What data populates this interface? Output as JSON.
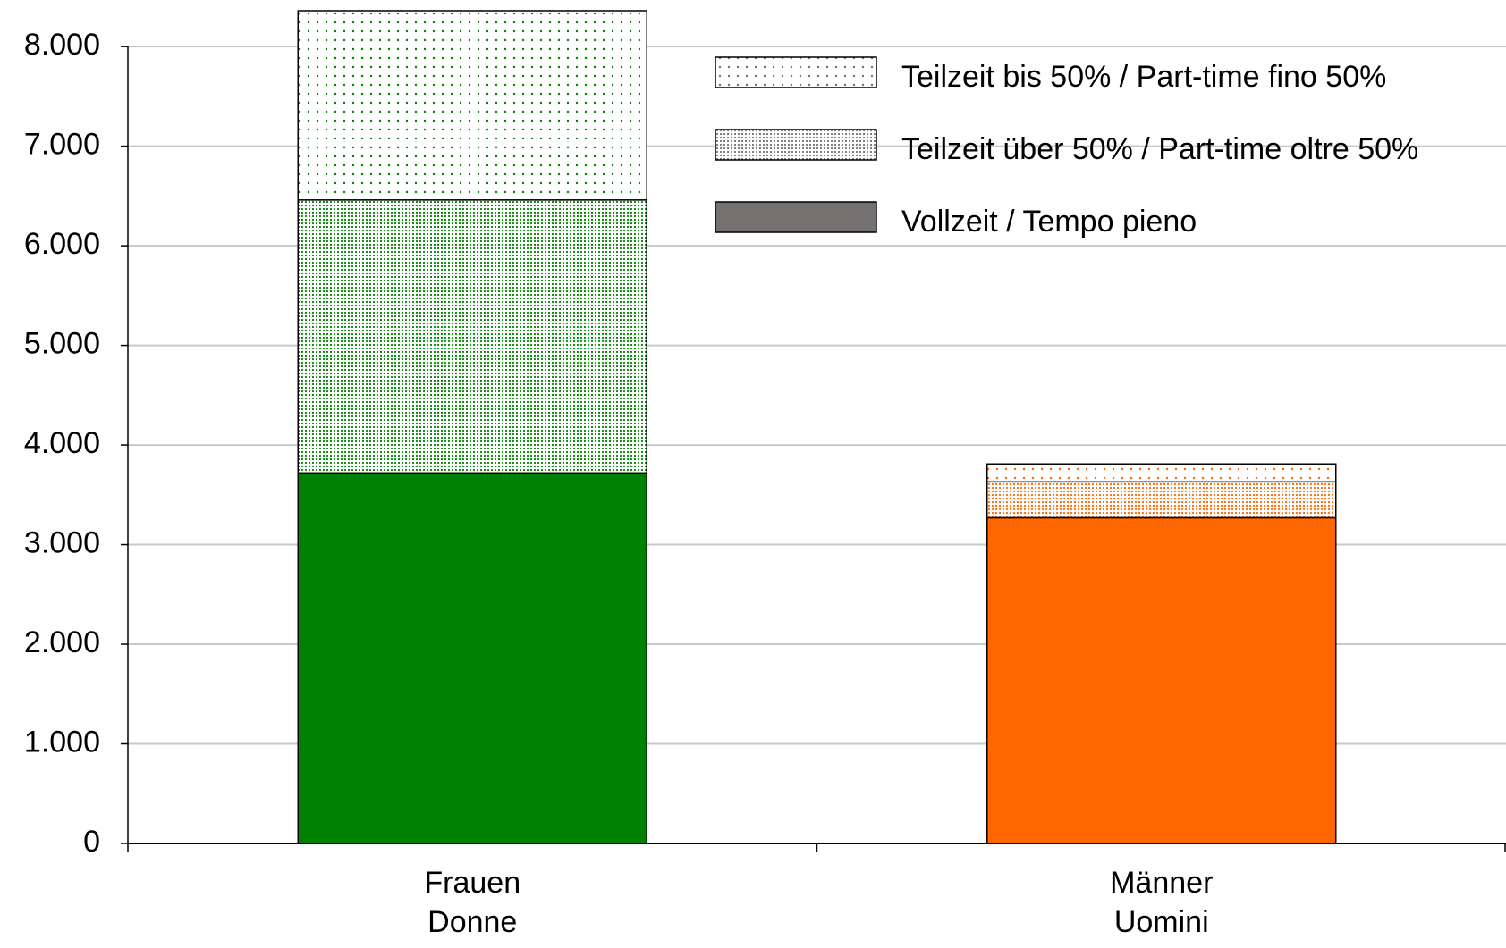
{
  "chart_data": {
    "type": "stacked-bar",
    "categories": [
      [
        "Frauen",
        "Donne"
      ],
      [
        "Männer",
        "Uomini"
      ]
    ],
    "category_colors": [
      "#008000",
      "#ff6600"
    ],
    "series": [
      {
        "name": "Vollzeit / Tempo pieno",
        "color": "#767171",
        "pattern": "solid",
        "values": [
          3720,
          3270
        ]
      },
      {
        "name": "Teilzeit über 50% / Part-time oltre 50%",
        "color": "#767171",
        "pattern": "dense-dots",
        "values": [
          2740,
          360
        ]
      },
      {
        "name": "Teilzeit bis 50% / Part-time fino 50%",
        "color": "#767171",
        "pattern": "sparse-dots",
        "values": [
          1900,
          180
        ]
      }
    ],
    "ylim": [
      0,
      8360
    ],
    "yticks": [
      0,
      {
        "value": 1000,
        "label": "1.000"
      },
      {
        "value": 2000,
        "label": "2.000"
      },
      {
        "value": 3000,
        "label": "3.000"
      },
      {
        "value": 4000,
        "label": "4.000"
      },
      {
        "value": 5000,
        "label": "5.000"
      },
      {
        "value": 6000,
        "label": "6.000"
      },
      {
        "value": 7000,
        "label": "7.000"
      },
      {
        "value": 8000,
        "label": "8.000"
      }
    ],
    "grid": true,
    "legend": "top-right"
  }
}
